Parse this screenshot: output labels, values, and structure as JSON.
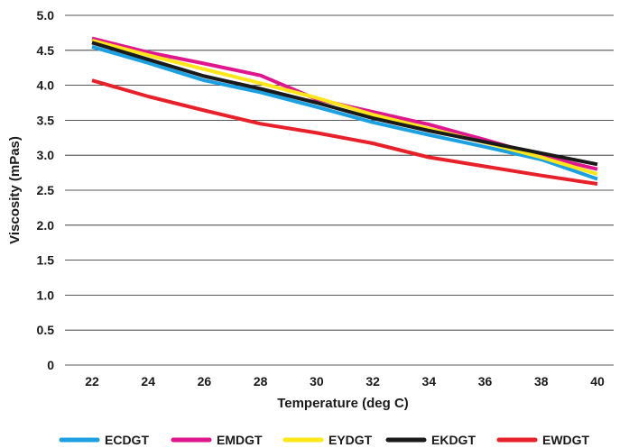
{
  "chart_data": {
    "type": "line",
    "title": "",
    "xlabel": "Temperature (deg C)",
    "ylabel": "Viscosity (mPas)",
    "x": [
      22,
      24,
      26,
      28,
      30,
      32,
      34,
      36,
      38,
      40
    ],
    "x_tick_labels": [
      "22",
      "24",
      "26",
      "28",
      "30",
      "32",
      "34",
      "36",
      "38",
      "40"
    ],
    "ylim": [
      0,
      5.0
    ],
    "y_ticks": [
      "0",
      "0.5",
      "1.0",
      "1.5",
      "2.0",
      "2.5",
      "3.0",
      "3.5",
      "4.0",
      "4.5",
      "5.0"
    ],
    "grid": "horizontal",
    "legend_position": "bottom",
    "series": [
      {
        "name": "ECDGT",
        "color": "#1ba1e2",
        "values": [
          4.55,
          4.32,
          4.07,
          3.9,
          3.69,
          3.47,
          3.29,
          3.12,
          2.94,
          2.66
        ]
      },
      {
        "name": "EMDGT",
        "color": "#e0168f",
        "values": [
          4.67,
          4.47,
          4.31,
          4.14,
          3.8,
          3.62,
          3.44,
          3.22,
          2.99,
          2.8
        ]
      },
      {
        "name": "EYDGT",
        "color": "#ffe619",
        "values": [
          4.64,
          4.43,
          4.23,
          4.03,
          3.82,
          3.58,
          3.38,
          3.18,
          2.97,
          2.73
        ]
      },
      {
        "name": "EKDGT",
        "color": "#1a1a1a",
        "values": [
          4.61,
          4.37,
          4.13,
          3.95,
          3.75,
          3.53,
          3.35,
          3.19,
          3.03,
          2.87
        ]
      },
      {
        "name": "EWDGT",
        "color": "#e8202a",
        "values": [
          4.07,
          3.84,
          3.64,
          3.45,
          3.32,
          3.17,
          2.97,
          2.84,
          2.71,
          2.59
        ]
      }
    ]
  }
}
